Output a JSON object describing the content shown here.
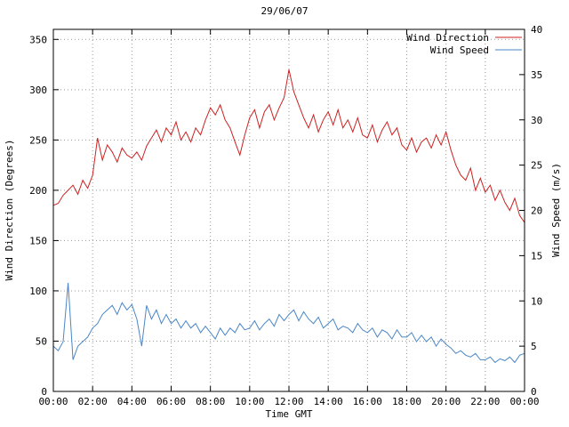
{
  "chart_data": {
    "type": "line",
    "title": "29/06/07",
    "xlabel": "Time GMT",
    "ylabel": "Wind Direction (Degrees)",
    "y2label": "Wind Speed (m/s)",
    "x_unit": "hours",
    "x_range": [
      0,
      24
    ],
    "y_range": [
      0,
      360
    ],
    "y2_range": [
      0,
      40
    ],
    "grid": true,
    "legend_position": "top-right-inside",
    "sample_interval_minutes": 15,
    "x_tick_labels": [
      "00:00",
      "02:00",
      "04:00",
      "06:00",
      "08:00",
      "10:00",
      "12:00",
      "14:00",
      "16:00",
      "18:00",
      "20:00",
      "22:00",
      "00:00"
    ],
    "x_tick_hours": [
      0,
      2,
      4,
      6,
      8,
      10,
      12,
      14,
      16,
      18,
      20,
      22,
      24
    ],
    "y_ticks": [
      0,
      50,
      100,
      150,
      200,
      250,
      300,
      350
    ],
    "y2_ticks": [
      0,
      5,
      10,
      15,
      20,
      25,
      30,
      35,
      40
    ],
    "grid_color": "#999999",
    "series": [
      {
        "name": "Wind Direction",
        "axis": "left",
        "color": "#cc2222",
        "values": [
          185,
          187,
          195,
          200,
          205,
          196,
          210,
          202,
          215,
          252,
          230,
          245,
          238,
          228,
          242,
          235,
          232,
          238,
          230,
          244,
          252,
          260,
          248,
          262,
          255,
          268,
          250,
          258,
          248,
          262,
          255,
          270,
          282,
          275,
          285,
          270,
          262,
          248,
          235,
          255,
          272,
          280,
          262,
          278,
          285,
          270,
          282,
          292,
          320,
          298,
          285,
          272,
          262,
          275,
          258,
          270,
          278,
          265,
          280,
          262,
          270,
          258,
          272,
          255,
          252,
          265,
          248,
          260,
          268,
          255,
          262,
          245,
          240,
          252,
          238,
          248,
          252,
          242,
          255,
          245,
          258,
          240,
          225,
          215,
          210,
          222,
          200,
          212,
          198,
          205,
          190,
          200,
          188,
          180,
          192,
          175,
          168
        ]
      },
      {
        "name": "Wind Speed",
        "axis": "right",
        "color": "#4a86c6",
        "values": [
          5.0,
          4.5,
          5.5,
          12.0,
          3.5,
          5.0,
          5.5,
          6.0,
          7.0,
          7.5,
          8.5,
          9.0,
          9.5,
          8.5,
          9.8,
          9.0,
          9.6,
          8.0,
          5.0,
          9.5,
          8.0,
          9.0,
          7.5,
          8.5,
          7.5,
          8.0,
          7.0,
          7.8,
          7.0,
          7.5,
          6.5,
          7.2,
          6.5,
          5.8,
          7.0,
          6.2,
          7.0,
          6.5,
          7.5,
          6.8,
          7.0,
          7.8,
          6.8,
          7.5,
          8.0,
          7.2,
          8.5,
          7.8,
          8.5,
          9.0,
          7.8,
          8.8,
          8.0,
          7.5,
          8.2,
          7.0,
          7.5,
          8.0,
          6.8,
          7.2,
          7.0,
          6.5,
          7.5,
          6.8,
          6.5,
          7.0,
          6.0,
          6.8,
          6.5,
          5.8,
          6.8,
          6.0,
          6.0,
          6.5,
          5.5,
          6.2,
          5.5,
          6.0,
          5.0,
          5.8,
          5.2,
          4.8,
          4.2,
          4.5,
          4.0,
          3.8,
          4.2,
          3.5,
          3.5,
          3.8,
          3.2,
          3.6,
          3.4,
          3.8,
          3.2,
          4.0,
          4.2
        ]
      }
    ]
  }
}
